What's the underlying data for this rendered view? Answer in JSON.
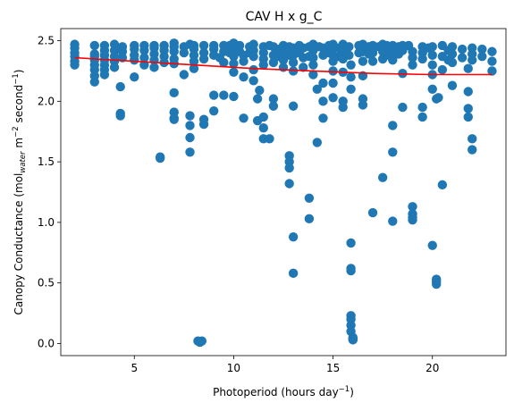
{
  "chart_data": {
    "type": "scatter",
    "title": "CAV H x g_C",
    "xlabel": {
      "main": "Photoperiod (hours day",
      "sup": "−1",
      "tail": ")"
    },
    "ylabel": {
      "p1": "Canopy Conductance (mol",
      "sub": "water",
      "p2": " m",
      "sup1": "−2",
      "p3": " second",
      "sup2": "−1",
      "p4": ")"
    },
    "xlim": [
      1.3,
      23.7
    ],
    "ylim": [
      -0.1,
      2.6
    ],
    "xticks": [
      5,
      10,
      15,
      20
    ],
    "xtick_labels": [
      "5",
      "10",
      "15",
      "20"
    ],
    "yticks": [
      0.0,
      0.5,
      1.0,
      1.5,
      2.0,
      2.5
    ],
    "ytick_labels": [
      "0.0",
      "0.5",
      "1.0",
      "1.5",
      "2.0",
      "2.5"
    ],
    "grid": false,
    "marker_color": "#1f77b4",
    "fit_color": "#ff0000",
    "series": [
      {
        "kind": "points",
        "x": [
          2.0,
          2.0,
          2.0,
          2.0,
          2.0,
          2.0,
          3.0,
          3.0,
          3.0,
          3.0,
          3.0,
          3.0,
          3.0,
          3.0,
          3.5,
          3.5,
          3.5,
          3.5,
          3.5,
          3.5,
          3.5,
          4.0,
          4.0,
          4.0,
          4.0,
          4.0,
          4.3,
          4.3,
          4.3,
          4.4,
          4.4,
          4.4,
          5.0,
          5.0,
          5.0,
          5.0,
          5.0,
          5.5,
          5.5,
          5.5,
          5.5,
          6.0,
          6.0,
          6.0,
          6.0,
          6.0,
          6.3,
          6.3,
          6.5,
          6.5,
          6.5,
          6.5,
          7.0,
          7.0,
          7.0,
          7.0,
          7.0,
          7.0,
          7.0,
          7.0,
          7.0,
          7.5,
          7.5,
          7.5,
          7.8,
          7.8,
          7.8,
          7.8,
          7.8,
          8.0,
          8.0,
          8.0,
          8.0,
          8.0,
          8.2,
          8.3,
          8.4,
          8.5,
          8.5,
          8.5,
          8.5,
          8.5,
          9.0,
          9.0,
          9.0,
          9.0,
          9.0,
          9.3,
          9.5,
          9.5,
          9.5,
          9.5,
          9.8,
          9.8,
          10.0,
          10.0,
          10.0,
          10.0,
          10.0,
          10.0,
          10.3,
          10.3,
          10.5,
          10.5,
          10.5,
          10.5,
          10.8,
          10.8,
          11.0,
          11.0,
          11.0,
          11.0,
          11.0,
          11.2,
          11.2,
          11.3,
          11.5,
          11.5,
          11.5,
          11.5,
          11.5,
          11.5,
          11.5,
          11.8,
          11.8,
          12.0,
          12.0,
          12.0,
          12.0,
          12.0,
          12.3,
          12.3,
          12.5,
          12.5,
          12.5,
          12.5,
          12.8,
          12.8,
          12.8,
          12.8,
          12.8,
          12.8,
          13.0,
          13.0,
          13.0,
          13.0,
          13.0,
          13.0,
          13.0,
          13.3,
          13.3,
          13.5,
          13.5,
          13.5,
          13.8,
          13.8,
          13.8,
          13.8,
          14.0,
          14.0,
          14.0,
          14.0,
          14.0,
          14.2,
          14.2,
          14.3,
          14.5,
          14.5,
          14.5,
          14.5,
          14.5,
          14.8,
          14.8,
          15.0,
          15.0,
          15.0,
          15.0,
          15.0,
          15.0,
          15.0,
          15.3,
          15.3,
          15.5,
          15.5,
          15.5,
          15.5,
          15.5,
          15.5,
          15.8,
          15.8,
          15.9,
          15.9,
          15.9,
          15.9,
          15.9,
          15.9,
          15.9,
          15.9,
          15.9,
          15.9,
          16.0,
          16.0,
          16.0,
          16.0,
          16.3,
          16.3,
          16.5,
          16.5,
          16.5,
          16.5,
          16.5,
          16.5,
          16.8,
          16.8,
          17.0,
          17.0,
          17.0,
          17.0,
          17.3,
          17.5,
          17.5,
          17.5,
          17.5,
          17.7,
          17.8,
          17.8,
          18.0,
          18.0,
          18.0,
          18.0,
          18.0,
          18.0,
          18.3,
          18.3,
          18.5,
          18.5,
          18.5,
          18.5,
          18.8,
          19.0,
          19.0,
          19.0,
          19.0,
          19.0,
          19.0,
          19.0,
          19.5,
          19.5,
          19.5,
          19.5,
          19.5,
          19.8,
          20.0,
          20.0,
          20.0,
          20.0,
          20.0,
          20.0,
          20.2,
          20.2,
          20.2,
          20.2,
          20.3,
          20.5,
          20.5,
          20.5,
          20.5,
          20.8,
          20.8,
          21.0,
          21.0,
          21.0,
          21.0,
          21.5,
          21.5,
          21.8,
          21.8,
          21.8,
          21.8,
          22.0,
          22.0,
          22.0,
          22.0,
          22.0,
          22.5,
          22.5,
          23.0,
          23.0,
          23.0
        ],
        "y": [
          2.47,
          2.44,
          2.4,
          2.37,
          2.33,
          2.3,
          2.46,
          2.39,
          2.34,
          2.3,
          2.26,
          2.21,
          2.16,
          2.37,
          2.46,
          2.42,
          2.38,
          2.34,
          2.3,
          2.26,
          2.22,
          2.47,
          2.42,
          2.37,
          2.33,
          2.28,
          2.12,
          1.9,
          1.88,
          2.45,
          2.41,
          2.36,
          2.46,
          2.43,
          2.38,
          2.34,
          2.2,
          2.46,
          2.42,
          2.36,
          2.3,
          2.46,
          2.44,
          2.39,
          2.34,
          2.28,
          1.54,
          1.53,
          2.46,
          2.42,
          2.37,
          2.32,
          2.48,
          2.45,
          2.41,
          2.35,
          2.31,
          2.07,
          1.91,
          1.86,
          1.85,
          2.45,
          2.4,
          2.22,
          2.47,
          1.88,
          1.8,
          1.7,
          1.58,
          2.46,
          2.43,
          2.38,
          2.33,
          2.27,
          0.02,
          0.01,
          0.02,
          2.46,
          2.4,
          2.35,
          1.85,
          1.81,
          2.46,
          2.43,
          2.38,
          2.05,
          1.92,
          2.36,
          2.46,
          2.41,
          2.32,
          2.05,
          2.46,
          2.4,
          2.48,
          2.43,
          2.37,
          2.31,
          2.24,
          2.04,
          2.46,
          2.41,
          2.38,
          2.33,
          2.2,
          1.86,
          2.45,
          2.4,
          2.47,
          2.42,
          2.37,
          2.26,
          2.17,
          2.02,
          1.84,
          2.09,
          2.45,
          2.4,
          2.35,
          2.3,
          1.87,
          1.78,
          1.69,
          2.46,
          1.69,
          2.45,
          2.38,
          2.32,
          2.02,
          1.96,
          2.43,
          2.37,
          2.46,
          2.41,
          2.34,
          2.28,
          2.45,
          2.38,
          1.55,
          1.5,
          1.45,
          1.32,
          2.44,
          2.38,
          2.32,
          2.25,
          1.96,
          0.88,
          0.58,
          2.46,
          2.4,
          2.44,
          2.36,
          2.28,
          2.45,
          2.37,
          1.2,
          1.03,
          2.47,
          2.42,
          2.36,
          2.3,
          2.22,
          2.1,
          1.66,
          2.45,
          2.44,
          2.38,
          2.15,
          2.0,
          1.86,
          2.46,
          2.4,
          2.47,
          2.43,
          2.38,
          2.33,
          2.25,
          2.15,
          2.03,
          2.44,
          2.37,
          2.47,
          2.41,
          2.35,
          2.24,
          2.0,
          1.95,
          2.45,
          2.38,
          2.3,
          2.2,
          2.1,
          0.83,
          0.62,
          0.6,
          0.23,
          0.2,
          0.15,
          0.1,
          0.05,
          0.04,
          0.03,
          0.04,
          2.46,
          2.4,
          2.47,
          2.41,
          2.33,
          2.21,
          2.02,
          1.97,
          2.45,
          2.39,
          2.46,
          2.4,
          2.33,
          1.08,
          2.45,
          2.47,
          2.41,
          2.35,
          1.37,
          2.46,
          2.38,
          2.45,
          2.46,
          2.41,
          2.34,
          1.8,
          1.58,
          1.01,
          2.45,
          2.39,
          2.46,
          2.42,
          2.23,
          1.95,
          2.46,
          2.41,
          2.36,
          2.3,
          1.13,
          1.07,
          1.04,
          1.02,
          2.45,
          2.4,
          2.35,
          1.95,
          1.87,
          2.44,
          2.45,
          2.38,
          2.3,
          2.22,
          2.1,
          0.81,
          0.53,
          0.51,
          0.49,
          2.02,
          2.03,
          2.46,
          2.37,
          2.26,
          1.31,
          2.42,
          2.34,
          2.45,
          2.39,
          2.32,
          2.13,
          2.43,
          2.36,
          2.27,
          2.08,
          1.94,
          1.87,
          2.44,
          2.39,
          2.34,
          1.69,
          1.6,
          2.43,
          2.37,
          2.41,
          2.33,
          2.25
        ]
      },
      {
        "kind": "fit_line",
        "x": [
          2.0,
          5.0,
          8.0,
          11.0,
          14.0,
          17.0,
          20.0,
          23.0
        ],
        "y": [
          2.36,
          2.33,
          2.3,
          2.27,
          2.25,
          2.23,
          2.22,
          2.22
        ]
      }
    ]
  }
}
